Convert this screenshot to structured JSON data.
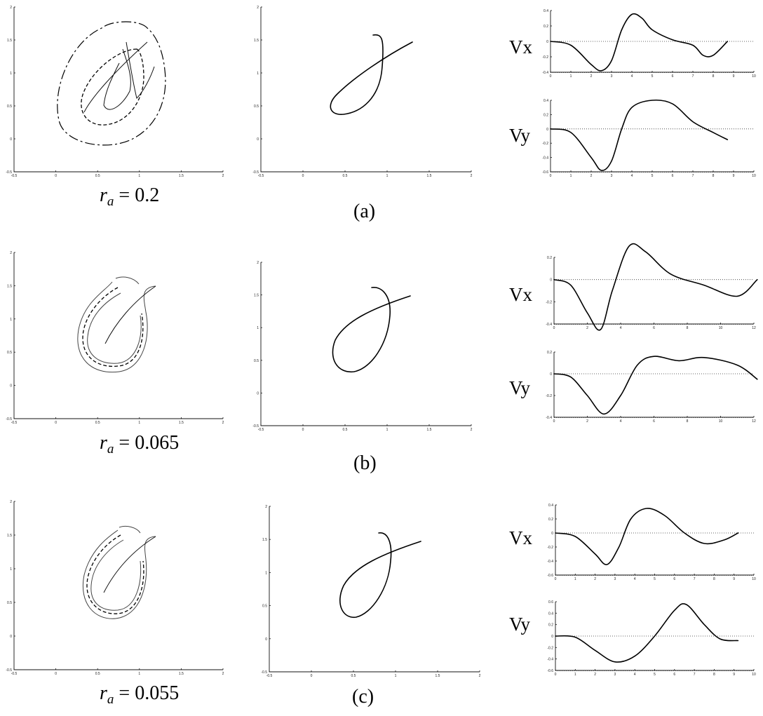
{
  "figure": {
    "rows": [
      {
        "id": "a",
        "panel_label": "(a)",
        "ra_symbol": "r",
        "ra_subscript": "a",
        "ra_eq": " = 0.2",
        "vx_label": "Vx",
        "vy_label": "Vy"
      },
      {
        "id": "b",
        "panel_label": "(b)",
        "ra_symbol": "r",
        "ra_subscript": "a",
        "ra_eq": " = 0.065",
        "vx_label": "Vx",
        "vy_label": "Vy"
      },
      {
        "id": "c",
        "panel_label": "(c)",
        "ra_symbol": "r",
        "ra_subscript": "a",
        "ra_eq": " = 0.055",
        "vx_label": "Vx",
        "vy_label": "Vy"
      }
    ]
  },
  "chart_data": [
    {
      "id": "a-traj",
      "type": "line",
      "xlim": [
        -0.5,
        2
      ],
      "ylim": [
        -0.5,
        2
      ],
      "xticks": [
        -0.5,
        0,
        0.5,
        1,
        1.5,
        2
      ],
      "yticks": [
        -0.5,
        0,
        0.5,
        1,
        1.5,
        2
      ],
      "tick_labels": [
        "-0.5",
        "0",
        "0.5",
        "1",
        "1.5",
        "2"
      ]
    },
    {
      "id": "a-vx",
      "type": "line",
      "xlim": [
        0,
        10
      ],
      "ylim": [
        -0.4,
        0.4
      ],
      "xticks": [
        0,
        1,
        2,
        3,
        4,
        5,
        6,
        7,
        8,
        9,
        10
      ],
      "yticks": [
        -0.4,
        -0.2,
        0,
        0.2,
        0.4
      ],
      "x": [
        0,
        1,
        2,
        2.5,
        3,
        3.5,
        4,
        4.5,
        5,
        6,
        7,
        7.5,
        8,
        8.7
      ],
      "y": [
        0,
        -0.05,
        -0.3,
        -0.38,
        -0.25,
        0.15,
        0.35,
        0.3,
        0.15,
        0.02,
        -0.05,
        -0.18,
        -0.18,
        0.0
      ]
    },
    {
      "id": "a-vy",
      "type": "line",
      "xlim": [
        0,
        10
      ],
      "ylim": [
        -0.6,
        0.4
      ],
      "xticks": [
        0,
        1,
        2,
        3,
        4,
        5,
        6,
        7,
        8,
        9,
        10
      ],
      "yticks": [
        -0.6,
        -0.4,
        -0.2,
        0,
        0.2,
        0.4
      ],
      "x": [
        0,
        1,
        2,
        2.5,
        3,
        3.5,
        4,
        5,
        6,
        7,
        8,
        8.7
      ],
      "y": [
        0,
        -0.05,
        -0.4,
        -0.58,
        -0.45,
        0.0,
        0.3,
        0.4,
        0.35,
        0.1,
        -0.05,
        -0.15
      ]
    },
    {
      "id": "b-vx",
      "type": "line",
      "xlim": [
        0,
        12
      ],
      "ylim": [
        -0.4,
        0.2
      ],
      "xticks": [
        0,
        2,
        4,
        6,
        8,
        10,
        12
      ],
      "yticks": [
        -0.4,
        -0.2,
        0,
        0.2
      ],
      "x": [
        0,
        1,
        2,
        2.8,
        3.5,
        4.5,
        5.5,
        7,
        9,
        11,
        12.2
      ],
      "y": [
        0,
        -0.05,
        -0.3,
        -0.45,
        -0.1,
        0.3,
        0.25,
        0.05,
        -0.05,
        -0.15,
        0.0
      ]
    },
    {
      "id": "b-vy",
      "type": "line",
      "xlim": [
        0,
        12
      ],
      "ylim": [
        -0.4,
        0.2
      ],
      "xticks": [
        0,
        2,
        4,
        6,
        8,
        10,
        12
      ],
      "yticks": [
        -0.4,
        -0.2,
        0,
        0.2
      ],
      "x": [
        0,
        1,
        2,
        3,
        4,
        5,
        6,
        7.5,
        9,
        11,
        12.2
      ],
      "y": [
        0,
        -0.03,
        -0.2,
        -0.37,
        -0.2,
        0.08,
        0.16,
        0.12,
        0.15,
        0.08,
        -0.05
      ]
    },
    {
      "id": "c-vx",
      "type": "line",
      "xlim": [
        0,
        10
      ],
      "ylim": [
        -0.6,
        0.4
      ],
      "xticks": [
        0,
        1,
        2,
        3,
        4,
        5,
        6,
        7,
        8,
        9,
        10
      ],
      "yticks": [
        -0.6,
        -0.4,
        -0.2,
        0,
        0.2,
        0.4
      ],
      "x": [
        0,
        1,
        2,
        2.6,
        3.2,
        3.8,
        4.6,
        5.5,
        6.5,
        7.5,
        8.5,
        9.2
      ],
      "y": [
        0,
        -0.05,
        -0.3,
        -0.45,
        -0.2,
        0.2,
        0.35,
        0.25,
        0.0,
        -0.15,
        -0.1,
        0.0
      ]
    },
    {
      "id": "c-vy",
      "type": "line",
      "xlim": [
        0,
        10
      ],
      "ylim": [
        -0.6,
        0.6
      ],
      "xticks": [
        0,
        1,
        2,
        3,
        4,
        5,
        6,
        7,
        8,
        9,
        10
      ],
      "yticks": [
        -0.6,
        -0.4,
        -0.2,
        0,
        0.2,
        0.4,
        0.6
      ],
      "x": [
        0,
        1,
        2,
        3,
        4,
        5,
        6,
        6.6,
        7.5,
        8.3,
        9.2
      ],
      "y": [
        0,
        -0.02,
        -0.25,
        -0.45,
        -0.35,
        0.0,
        0.45,
        0.55,
        0.2,
        -0.05,
        -0.08
      ]
    }
  ]
}
